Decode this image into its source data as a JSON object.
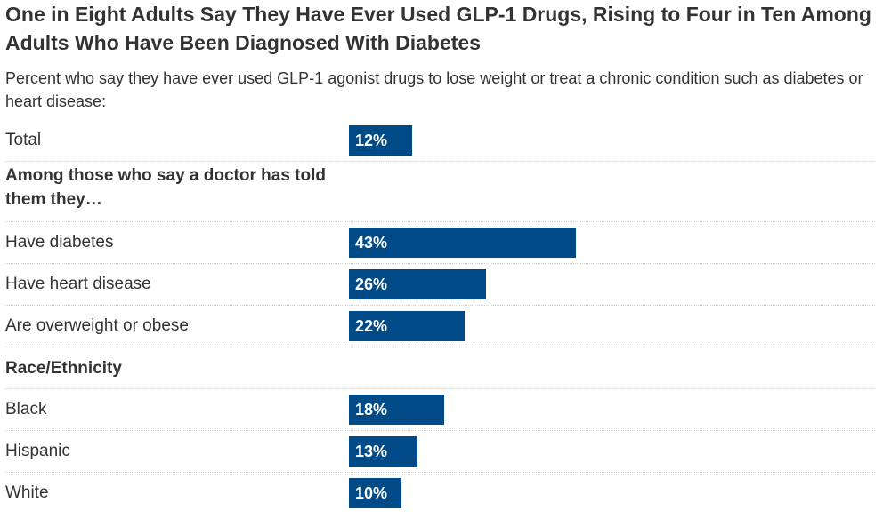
{
  "title": "One in Eight Adults Say They Have Ever Used GLP-1 Drugs, Rising to Four in Ten Among Adults Who Have Been Diagnosed With Diabetes",
  "subtitle": "Percent who say they have ever used GLP-1 agonist drugs to lose weight or treat a chronic condition such as diabetes or heart disease:",
  "colors": {
    "bar": "#004a87",
    "bar_label": "#ffffff"
  },
  "chart_data": {
    "type": "bar",
    "orientation": "horizontal",
    "rows": [
      {
        "kind": "data",
        "label": "Total",
        "value": 12,
        "value_label": "12%"
      },
      {
        "kind": "header",
        "label": "Among those who say a doctor has told them they…"
      },
      {
        "kind": "data",
        "label": "Have diabetes",
        "value": 43,
        "value_label": "43%"
      },
      {
        "kind": "data",
        "label": "Have heart disease",
        "value": 26,
        "value_label": "26%"
      },
      {
        "kind": "data",
        "label": "Are overweight or obese",
        "value": 22,
        "value_label": "22%"
      },
      {
        "kind": "header",
        "label": "Race/Ethnicity"
      },
      {
        "kind": "data",
        "label": "Black",
        "value": 18,
        "value_label": "18%"
      },
      {
        "kind": "data",
        "label": "Hispanic",
        "value": 13,
        "value_label": "13%"
      },
      {
        "kind": "data",
        "label": "White",
        "value": 10,
        "value_label": "10%"
      }
    ],
    "unit": "%",
    "grid": false,
    "legend": "none"
  }
}
